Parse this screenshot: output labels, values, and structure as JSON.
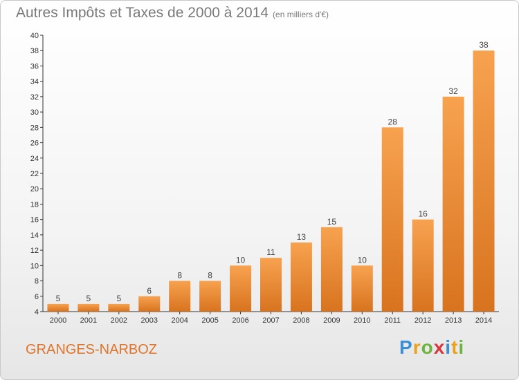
{
  "header": {
    "title": "Autres Impôts et Taxes de 2000 à 2014",
    "subtitle": "(en milliers d'€)"
  },
  "footer": {
    "city": "GRANGES-NARBOZ",
    "brand": [
      "P",
      "r",
      "o",
      "x",
      "i",
      "t",
      "i"
    ]
  },
  "colors": {
    "bar_light": "#f7a24f",
    "bar_dark": "#d8731f",
    "title": "#7a7a7a",
    "city": "#e0742a"
  },
  "chart_data": {
    "type": "bar",
    "title": "Autres Impôts et Taxes de 2000 à 2014",
    "subtitle": "(en milliers d'€)",
    "categories": [
      "2000",
      "2001",
      "2002",
      "2003",
      "2004",
      "2005",
      "2006",
      "2007",
      "2008",
      "2009",
      "2010",
      "2011",
      "2012",
      "2013",
      "2014"
    ],
    "values": [
      5,
      5,
      5,
      6,
      8,
      8,
      10,
      11,
      13,
      15,
      10,
      28,
      16,
      32,
      38
    ],
    "ylim": [
      4,
      40
    ],
    "yticks": [
      4,
      6,
      8,
      10,
      12,
      14,
      16,
      18,
      20,
      22,
      24,
      26,
      28,
      30,
      32,
      34,
      36,
      38,
      40
    ],
    "grid": false,
    "legend": "none"
  }
}
